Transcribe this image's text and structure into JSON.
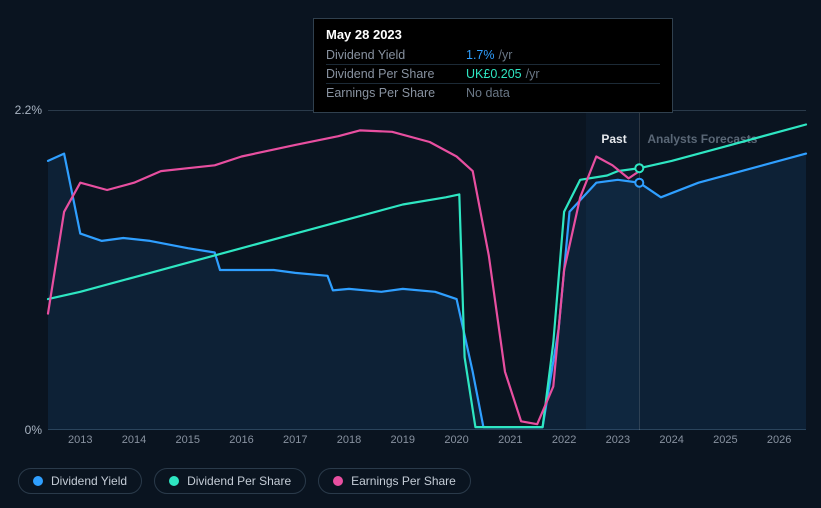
{
  "chart": {
    "type": "line",
    "background_color": "#0a1420",
    "grid_color": "#2a3a4a",
    "ylim_label_top": "2.2%",
    "ylim_label_bottom": "0%",
    "x_start_year": 2013,
    "x_end_year": 2026,
    "x_years": [
      2013,
      2014,
      2015,
      2016,
      2017,
      2018,
      2019,
      2020,
      2021,
      2022,
      2023,
      2024,
      2025,
      2026
    ],
    "past_label": "Past",
    "future_label": "Analysts Forecasts",
    "divider_year": 2023.4,
    "marker_year": 2023.4,
    "past_color": "#e6e9ed",
    "future_color": "#5a6776",
    "series": {
      "dividend_yield": {
        "label": "Dividend Yield",
        "color": "#2f9fff",
        "area": true,
        "area_opacity": 0.1,
        "future_dash": false,
        "points": [
          [
            2012.4,
            1.85
          ],
          [
            2012.7,
            1.9
          ],
          [
            2013.0,
            1.35
          ],
          [
            2013.4,
            1.3
          ],
          [
            2013.8,
            1.32
          ],
          [
            2014.3,
            1.3
          ],
          [
            2015.0,
            1.25
          ],
          [
            2015.5,
            1.22
          ],
          [
            2015.6,
            1.1
          ],
          [
            2016.0,
            1.1
          ],
          [
            2016.6,
            1.1
          ],
          [
            2017.0,
            1.08
          ],
          [
            2017.6,
            1.06
          ],
          [
            2017.7,
            0.96
          ],
          [
            2018.0,
            0.97
          ],
          [
            2018.6,
            0.95
          ],
          [
            2019.0,
            0.97
          ],
          [
            2019.6,
            0.95
          ],
          [
            2020.0,
            0.9
          ],
          [
            2020.3,
            0.4
          ],
          [
            2020.5,
            0.02
          ],
          [
            2021.0,
            0.02
          ],
          [
            2021.6,
            0.02
          ],
          [
            2021.9,
            0.7
          ],
          [
            2022.1,
            1.5
          ],
          [
            2022.6,
            1.7
          ],
          [
            2023.0,
            1.72
          ],
          [
            2023.4,
            1.7
          ],
          [
            2023.8,
            1.6
          ],
          [
            2024.5,
            1.7
          ],
          [
            2025.5,
            1.8
          ],
          [
            2026.5,
            1.9
          ]
        ]
      },
      "dividend_per_share": {
        "label": "Dividend Per Share",
        "color": "#2ee6c2",
        "area": false,
        "future_dash": false,
        "points": [
          [
            2012.4,
            0.9
          ],
          [
            2013.0,
            0.95
          ],
          [
            2014.0,
            1.05
          ],
          [
            2015.0,
            1.15
          ],
          [
            2016.0,
            1.25
          ],
          [
            2017.0,
            1.35
          ],
          [
            2018.0,
            1.45
          ],
          [
            2019.0,
            1.55
          ],
          [
            2019.8,
            1.6
          ],
          [
            2020.05,
            1.62
          ],
          [
            2020.15,
            0.5
          ],
          [
            2020.35,
            0.02
          ],
          [
            2021.0,
            0.02
          ],
          [
            2021.6,
            0.02
          ],
          [
            2021.8,
            0.6
          ],
          [
            2022.0,
            1.5
          ],
          [
            2022.3,
            1.72
          ],
          [
            2022.8,
            1.75
          ],
          [
            2023.0,
            1.78
          ],
          [
            2023.4,
            1.8
          ],
          [
            2024.0,
            1.85
          ],
          [
            2025.0,
            1.95
          ],
          [
            2026.0,
            2.05
          ],
          [
            2026.5,
            2.1
          ]
        ]
      },
      "earnings_per_share": {
        "label": "Earnings Per Share",
        "color": "#e84fa0",
        "area": false,
        "future_dash": false,
        "points": [
          [
            2012.4,
            0.8
          ],
          [
            2012.7,
            1.5
          ],
          [
            2013.0,
            1.7
          ],
          [
            2013.5,
            1.65
          ],
          [
            2014.0,
            1.7
          ],
          [
            2014.5,
            1.78
          ],
          [
            2015.0,
            1.8
          ],
          [
            2015.5,
            1.82
          ],
          [
            2016.0,
            1.88
          ],
          [
            2016.5,
            1.92
          ],
          [
            2017.0,
            1.96
          ],
          [
            2017.8,
            2.02
          ],
          [
            2018.2,
            2.06
          ],
          [
            2018.8,
            2.05
          ],
          [
            2019.5,
            1.98
          ],
          [
            2020.0,
            1.88
          ],
          [
            2020.3,
            1.78
          ],
          [
            2020.6,
            1.2
          ],
          [
            2020.9,
            0.4
          ],
          [
            2021.2,
            0.06
          ],
          [
            2021.5,
            0.04
          ],
          [
            2021.8,
            0.3
          ],
          [
            2022.0,
            1.1
          ],
          [
            2022.3,
            1.6
          ],
          [
            2022.6,
            1.88
          ],
          [
            2022.9,
            1.82
          ],
          [
            2023.2,
            1.73
          ],
          [
            2023.4,
            1.78
          ]
        ]
      }
    },
    "markers": [
      {
        "series": "dividend_per_share",
        "x": 2023.4,
        "y": 1.8
      },
      {
        "series": "dividend_yield",
        "x": 2023.4,
        "y": 1.7
      }
    ]
  },
  "tooltip": {
    "title": "May 28 2023",
    "rows": [
      {
        "key": "Dividend Yield",
        "value": "1.7%",
        "suffix": "/yr",
        "value_class": "tt-v1"
      },
      {
        "key": "Dividend Per Share",
        "value": "UK£0.205",
        "suffix": "/yr",
        "value_class": "tt-v2"
      },
      {
        "key": "Earnings Per Share",
        "value": "No data",
        "suffix": "",
        "value_class": "tt-v3"
      }
    ]
  },
  "legend": [
    {
      "label": "Dividend Yield",
      "color": "#2f9fff"
    },
    {
      "label": "Dividend Per Share",
      "color": "#2ee6c2"
    },
    {
      "label": "Earnings Per Share",
      "color": "#e84fa0"
    }
  ]
}
